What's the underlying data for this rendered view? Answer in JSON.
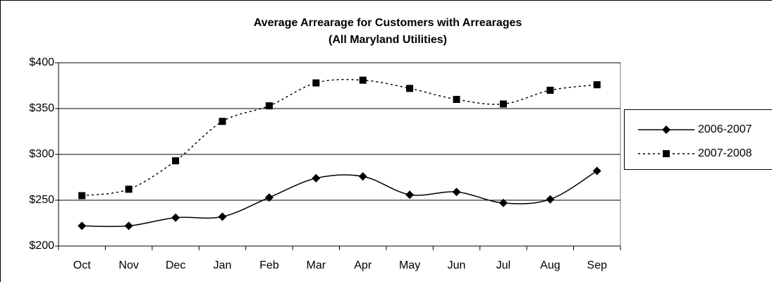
{
  "chart_data": {
    "type": "line",
    "title": "Average Arrearage for Customers with Arrearages",
    "subtitle": "(All Maryland Utilities)",
    "categories": [
      "Oct",
      "Nov",
      "Dec",
      "Jan",
      "Feb",
      "Mar",
      "Apr",
      "May",
      "Jun",
      "Jul",
      "Aug",
      "Sep"
    ],
    "series": [
      {
        "name": "2006-2007",
        "color": "#000000",
        "marker": "diamond",
        "dash": "solid",
        "values": [
          222,
          222,
          231,
          232,
          253,
          274,
          276,
          256,
          259,
          247,
          251,
          282
        ]
      },
      {
        "name": "2007-2008",
        "color": "#000000",
        "marker": "square",
        "dash": "dotted",
        "values": [
          255,
          262,
          293,
          336,
          353,
          378,
          381,
          372,
          360,
          355,
          370,
          376
        ]
      }
    ],
    "ylim": [
      200,
      400
    ],
    "yticks": [
      {
        "value": 200,
        "label": "$200"
      },
      {
        "value": 250,
        "label": "$250"
      },
      {
        "value": 300,
        "label": "$300"
      },
      {
        "value": 350,
        "label": "$350"
      },
      {
        "value": 400,
        "label": "$400"
      }
    ],
    "grid": true,
    "smooth": true,
    "legend": "right"
  }
}
